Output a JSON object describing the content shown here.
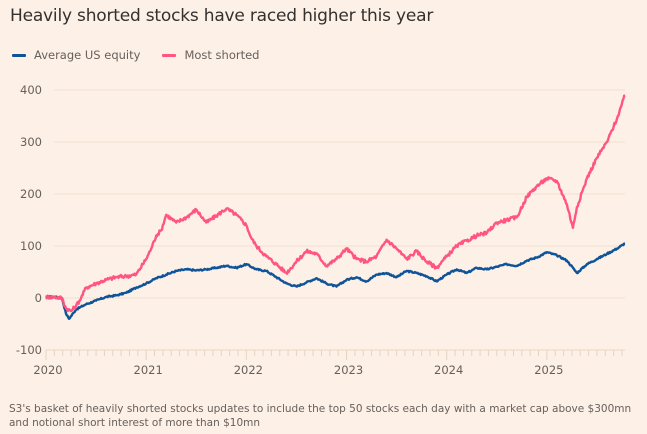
{
  "chart_data": {
    "type": "line",
    "title": "Heavily shorted stocks have raced higher this year",
    "xlabel": "",
    "ylabel": "",
    "ylim": [
      -100,
      400
    ],
    "yticks": [
      -100,
      0,
      100,
      200,
      300,
      400
    ],
    "ytick_labels": [
      "-100",
      "0",
      "100",
      "200",
      "300",
      "400"
    ],
    "xlim": [
      2020.0,
      2025.78
    ],
    "xticks": [
      2020,
      2021,
      2022,
      2023,
      2024,
      2025
    ],
    "xtick_labels": [
      "2020",
      "2021",
      "2022",
      "2023",
      "2024",
      "2025"
    ],
    "grid": true,
    "legend_position": "top-left",
    "series": [
      {
        "name": "Average US equity",
        "color": "#0f5499",
        "x": [
          2020.0,
          2020.08,
          2020.16,
          2020.2,
          2020.23,
          2020.3,
          2020.4,
          2020.5,
          2020.6,
          2020.7,
          2020.8,
          2020.9,
          2021.0,
          2021.1,
          2021.2,
          2021.3,
          2021.4,
          2021.5,
          2021.6,
          2021.7,
          2021.8,
          2021.9,
          2022.0,
          2022.1,
          2022.2,
          2022.3,
          2022.4,
          2022.5,
          2022.6,
          2022.7,
          2022.8,
          2022.9,
          2023.0,
          2023.1,
          2023.2,
          2023.3,
          2023.4,
          2023.5,
          2023.6,
          2023.7,
          2023.8,
          2023.9,
          2024.0,
          2024.1,
          2024.2,
          2024.3,
          2024.4,
          2024.5,
          2024.6,
          2024.7,
          2024.8,
          2024.9,
          2025.0,
          2025.1,
          2025.2,
          2025.26,
          2025.3,
          2025.4,
          2025.5,
          2025.6,
          2025.7,
          2025.78
        ],
        "values": [
          2,
          2,
          0,
          -30,
          -40,
          -22,
          -12,
          -5,
          2,
          5,
          10,
          20,
          28,
          38,
          45,
          52,
          55,
          53,
          55,
          58,
          62,
          58,
          65,
          55,
          52,
          40,
          28,
          22,
          30,
          38,
          28,
          22,
          35,
          40,
          32,
          45,
          48,
          40,
          52,
          48,
          42,
          32,
          45,
          55,
          48,
          58,
          55,
          60,
          65,
          62,
          72,
          78,
          88,
          82,
          72,
          58,
          48,
          65,
          75,
          85,
          95,
          105
        ]
      },
      {
        "name": "Most shorted",
        "color": "#ff5580",
        "x": [
          2020.0,
          2020.08,
          2020.16,
          2020.2,
          2020.25,
          2020.3,
          2020.35,
          2020.4,
          2020.5,
          2020.6,
          2020.7,
          2020.8,
          2020.9,
          2021.0,
          2021.05,
          2021.1,
          2021.15,
          2021.2,
          2021.3,
          2021.4,
          2021.5,
          2021.6,
          2021.7,
          2021.8,
          2021.9,
          2022.0,
          2022.05,
          2022.1,
          2022.2,
          2022.3,
          2022.4,
          2022.5,
          2022.6,
          2022.7,
          2022.8,
          2022.9,
          2023.0,
          2023.1,
          2023.2,
          2023.3,
          2023.4,
          2023.5,
          2023.6,
          2023.7,
          2023.8,
          2023.9,
          2024.0,
          2024.1,
          2024.2,
          2024.3,
          2024.4,
          2024.5,
          2024.6,
          2024.7,
          2024.8,
          2024.9,
          2025.0,
          2025.1,
          2025.2,
          2025.26,
          2025.3,
          2025.4,
          2025.5,
          2025.6,
          2025.7,
          2025.78
        ],
        "values": [
          2,
          2,
          0,
          -20,
          -25,
          -15,
          0,
          20,
          28,
          35,
          40,
          42,
          45,
          75,
          95,
          120,
          130,
          160,
          145,
          155,
          170,
          145,
          158,
          172,
          160,
          140,
          115,
          100,
          80,
          65,
          48,
          70,
          90,
          85,
          62,
          75,
          95,
          75,
          70,
          80,
          112,
          95,
          75,
          90,
          70,
          58,
          80,
          100,
          110,
          120,
          125,
          145,
          150,
          155,
          195,
          215,
          230,
          225,
          180,
          135,
          175,
          230,
          270,
          300,
          345,
          390
        ]
      }
    ],
    "caption": "S3's basket of heavily shorted stocks updates to include the top 50 stocks each day with a market cap above $300mn and notional short interest of more than $10mn"
  },
  "legend": [
    {
      "label": "Average US equity",
      "color": "#0f5499"
    },
    {
      "label": "Most shorted",
      "color": "#ff5580"
    }
  ]
}
